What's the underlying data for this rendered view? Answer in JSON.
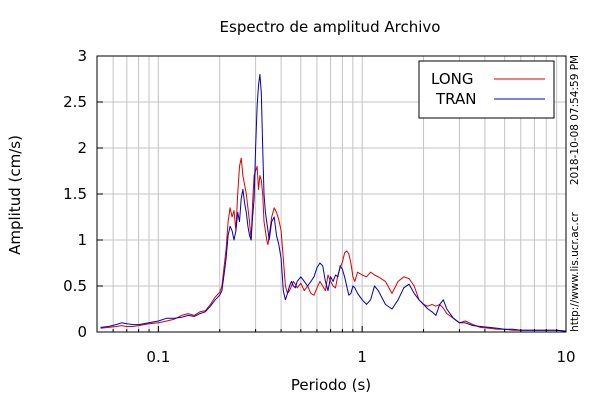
{
  "chart_data": {
    "type": "line",
    "title": "Espectro de amplitud Archivo",
    "xlabel": "Periodo (s)",
    "ylabel": "Amplitud (cm/s)",
    "xscale": "log",
    "xlim": [
      0.05,
      10
    ],
    "ylim": [
      0,
      3
    ],
    "grid": true,
    "legend_position": "top-right",
    "x_ticks": [
      {
        "value": 0.1,
        "label": "0.1"
      },
      {
        "value": 1,
        "label": "1"
      },
      {
        "value": 10,
        "label": "10"
      }
    ],
    "y_ticks": [
      {
        "value": 0,
        "label": "0"
      },
      {
        "value": 0.5,
        "label": "0.5"
      },
      {
        "value": 1,
        "label": "1"
      },
      {
        "value": 1.5,
        "label": "1.5"
      },
      {
        "value": 2,
        "label": "2"
      },
      {
        "value": 2.5,
        "label": "2.5"
      },
      {
        "value": 3,
        "label": "3"
      }
    ],
    "series": [
      {
        "name": "LONG",
        "color": "#dd0000",
        "x": [
          0.052,
          0.057,
          0.062,
          0.066,
          0.07,
          0.075,
          0.08,
          0.09,
          0.1,
          0.11,
          0.12,
          0.13,
          0.14,
          0.15,
          0.16,
          0.17,
          0.18,
          0.19,
          0.2,
          0.205,
          0.21,
          0.215,
          0.22,
          0.225,
          0.23,
          0.235,
          0.24,
          0.245,
          0.25,
          0.255,
          0.26,
          0.265,
          0.27,
          0.275,
          0.28,
          0.285,
          0.29,
          0.295,
          0.3,
          0.305,
          0.31,
          0.315,
          0.32,
          0.325,
          0.33,
          0.335,
          0.34,
          0.345,
          0.35,
          0.36,
          0.37,
          0.38,
          0.39,
          0.4,
          0.41,
          0.42,
          0.43,
          0.44,
          0.45,
          0.46,
          0.47,
          0.48,
          0.5,
          0.52,
          0.54,
          0.56,
          0.58,
          0.6,
          0.62,
          0.64,
          0.66,
          0.68,
          0.7,
          0.72,
          0.74,
          0.76,
          0.78,
          0.8,
          0.82,
          0.84,
          0.86,
          0.88,
          0.9,
          0.92,
          0.95,
          1.0,
          1.05,
          1.1,
          1.15,
          1.2,
          1.3,
          1.4,
          1.5,
          1.6,
          1.7,
          1.8,
          1.9,
          2.0,
          2.1,
          2.2,
          2.3,
          2.4,
          2.5,
          2.6,
          2.8,
          3.0,
          3.2,
          3.5,
          3.8,
          4.2,
          4.6,
          5.0,
          5.5,
          6,
          7,
          8,
          9,
          10
        ],
        "y": [
          0.04,
          0.05,
          0.06,
          0.07,
          0.06,
          0.06,
          0.07,
          0.09,
          0.1,
          0.12,
          0.14,
          0.18,
          0.2,
          0.18,
          0.22,
          0.23,
          0.3,
          0.38,
          0.43,
          0.5,
          0.7,
          0.9,
          1.2,
          1.35,
          1.25,
          1.32,
          1.1,
          1.5,
          1.8,
          1.89,
          1.7,
          1.6,
          1.5,
          1.35,
          1.2,
          1.0,
          1.4,
          1.7,
          1.75,
          1.8,
          1.55,
          1.7,
          1.65,
          1.5,
          1.2,
          1.1,
          1.0,
          0.95,
          1.05,
          1.25,
          1.35,
          1.3,
          1.22,
          1.1,
          0.8,
          0.5,
          0.42,
          0.45,
          0.5,
          0.55,
          0.52,
          0.48,
          0.53,
          0.45,
          0.5,
          0.42,
          0.4,
          0.48,
          0.55,
          0.5,
          0.45,
          0.62,
          0.55,
          0.5,
          0.48,
          0.62,
          0.7,
          0.76,
          0.86,
          0.88,
          0.85,
          0.75,
          0.6,
          0.55,
          0.65,
          0.62,
          0.6,
          0.65,
          0.62,
          0.6,
          0.55,
          0.42,
          0.55,
          0.6,
          0.58,
          0.5,
          0.35,
          0.3,
          0.28,
          0.3,
          0.28,
          0.3,
          0.26,
          0.2,
          0.15,
          0.1,
          0.12,
          0.08,
          0.05,
          0.04,
          0.03,
          0.03,
          0.02,
          0.02,
          0.02,
          0.02,
          0.02,
          0.01
        ]
      },
      {
        "name": "TRAN",
        "color": "#0000bb",
        "x": [
          0.052,
          0.057,
          0.062,
          0.066,
          0.07,
          0.075,
          0.08,
          0.09,
          0.1,
          0.11,
          0.12,
          0.13,
          0.14,
          0.15,
          0.16,
          0.17,
          0.18,
          0.19,
          0.2,
          0.205,
          0.21,
          0.215,
          0.22,
          0.225,
          0.23,
          0.235,
          0.24,
          0.245,
          0.25,
          0.255,
          0.26,
          0.265,
          0.27,
          0.275,
          0.28,
          0.285,
          0.29,
          0.295,
          0.3,
          0.305,
          0.31,
          0.315,
          0.32,
          0.325,
          0.33,
          0.335,
          0.34,
          0.345,
          0.35,
          0.36,
          0.37,
          0.38,
          0.39,
          0.4,
          0.41,
          0.42,
          0.43,
          0.44,
          0.45,
          0.46,
          0.47,
          0.48,
          0.5,
          0.52,
          0.54,
          0.56,
          0.58,
          0.6,
          0.62,
          0.64,
          0.66,
          0.68,
          0.7,
          0.72,
          0.74,
          0.76,
          0.78,
          0.8,
          0.82,
          0.84,
          0.86,
          0.88,
          0.9,
          0.92,
          0.95,
          1.0,
          1.05,
          1.1,
          1.15,
          1.2,
          1.3,
          1.4,
          1.5,
          1.6,
          1.7,
          1.8,
          1.9,
          2.0,
          2.1,
          2.2,
          2.3,
          2.4,
          2.5,
          2.6,
          2.8,
          3.0,
          3.2,
          3.5,
          3.8,
          4.2,
          4.6,
          5.0,
          5.5,
          6,
          7,
          8,
          9,
          10
        ],
        "y": [
          0.05,
          0.06,
          0.08,
          0.1,
          0.09,
          0.08,
          0.08,
          0.1,
          0.12,
          0.15,
          0.15,
          0.16,
          0.18,
          0.17,
          0.2,
          0.22,
          0.28,
          0.35,
          0.4,
          0.45,
          0.62,
          0.8,
          1.05,
          1.15,
          1.1,
          1.0,
          1.1,
          1.3,
          1.2,
          1.45,
          1.55,
          1.4,
          1.3,
          1.15,
          1.05,
          1.0,
          1.25,
          1.45,
          2.0,
          2.45,
          2.68,
          2.8,
          2.6,
          2.0,
          1.5,
          1.3,
          1.2,
          1.1,
          1.0,
          1.2,
          1.25,
          1.05,
          0.95,
          0.8,
          0.45,
          0.35,
          0.42,
          0.5,
          0.55,
          0.5,
          0.48,
          0.55,
          0.6,
          0.55,
          0.5,
          0.55,
          0.6,
          0.7,
          0.75,
          0.72,
          0.55,
          0.45,
          0.6,
          0.55,
          0.62,
          0.6,
          0.72,
          0.68,
          0.6,
          0.5,
          0.4,
          0.42,
          0.5,
          0.48,
          0.42,
          0.35,
          0.3,
          0.35,
          0.5,
          0.45,
          0.3,
          0.25,
          0.35,
          0.48,
          0.52,
          0.42,
          0.35,
          0.3,
          0.25,
          0.22,
          0.18,
          0.3,
          0.35,
          0.25,
          0.15,
          0.1,
          0.1,
          0.07,
          0.06,
          0.05,
          0.04,
          0.03,
          0.03,
          0.02,
          0.02,
          0.02,
          0.02,
          0.01
        ]
      }
    ]
  },
  "side_text": {
    "timestamp": "2018-10-08 07:54:59 PM",
    "url": "http://www.lis.ucr.ac.cr"
  }
}
